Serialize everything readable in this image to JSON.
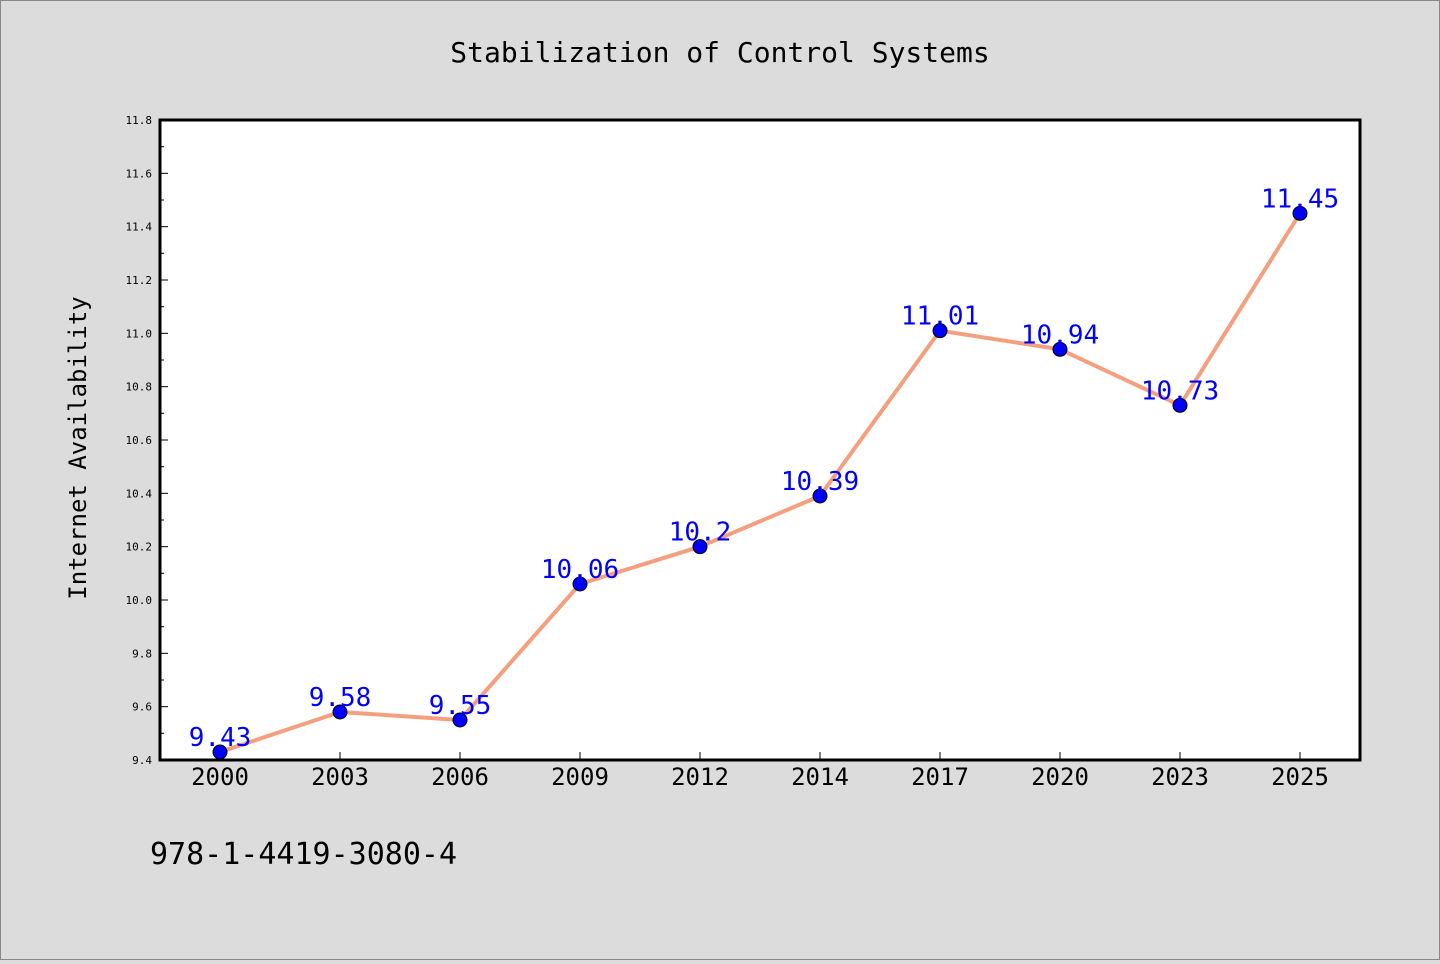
{
  "chart_data": {
    "type": "line",
    "title": "Stabilization of Control Systems",
    "xlabel": "",
    "ylabel": "Internet Availability",
    "categories": [
      "2000",
      "2003",
      "2006",
      "2009",
      "2012",
      "2014",
      "2017",
      "2020",
      "2023",
      "2025"
    ],
    "series": [
      {
        "values": [
          9.43,
          9.58,
          9.55,
          10.06,
          10.2,
          10.39,
          11.01,
          10.94,
          10.73,
          11.45
        ],
        "labels": [
          "9.43",
          "9.58",
          "9.55",
          "10.06",
          "10.2",
          "10.39",
          "11.01",
          "10.94",
          "10.73",
          "11.45"
        ],
        "line_color": "#f4a07e",
        "marker_color": "#0000ff",
        "label_color": "#0000ff"
      }
    ],
    "ylim": [
      9.4,
      11.8
    ],
    "yticks": [
      "9.4",
      "9.6",
      "9.8",
      "10.0",
      "10.2",
      "10.4",
      "10.6",
      "10.8",
      "11.0",
      "11.2",
      "11.4",
      "11.6",
      "11.8"
    ],
    "grid": false,
    "legend": "none"
  },
  "footer_text": "978-1-4419-3080-4",
  "colors": {
    "background": "#dcdcdc",
    "plot_background": "#ffffff",
    "axis": "#000000"
  }
}
